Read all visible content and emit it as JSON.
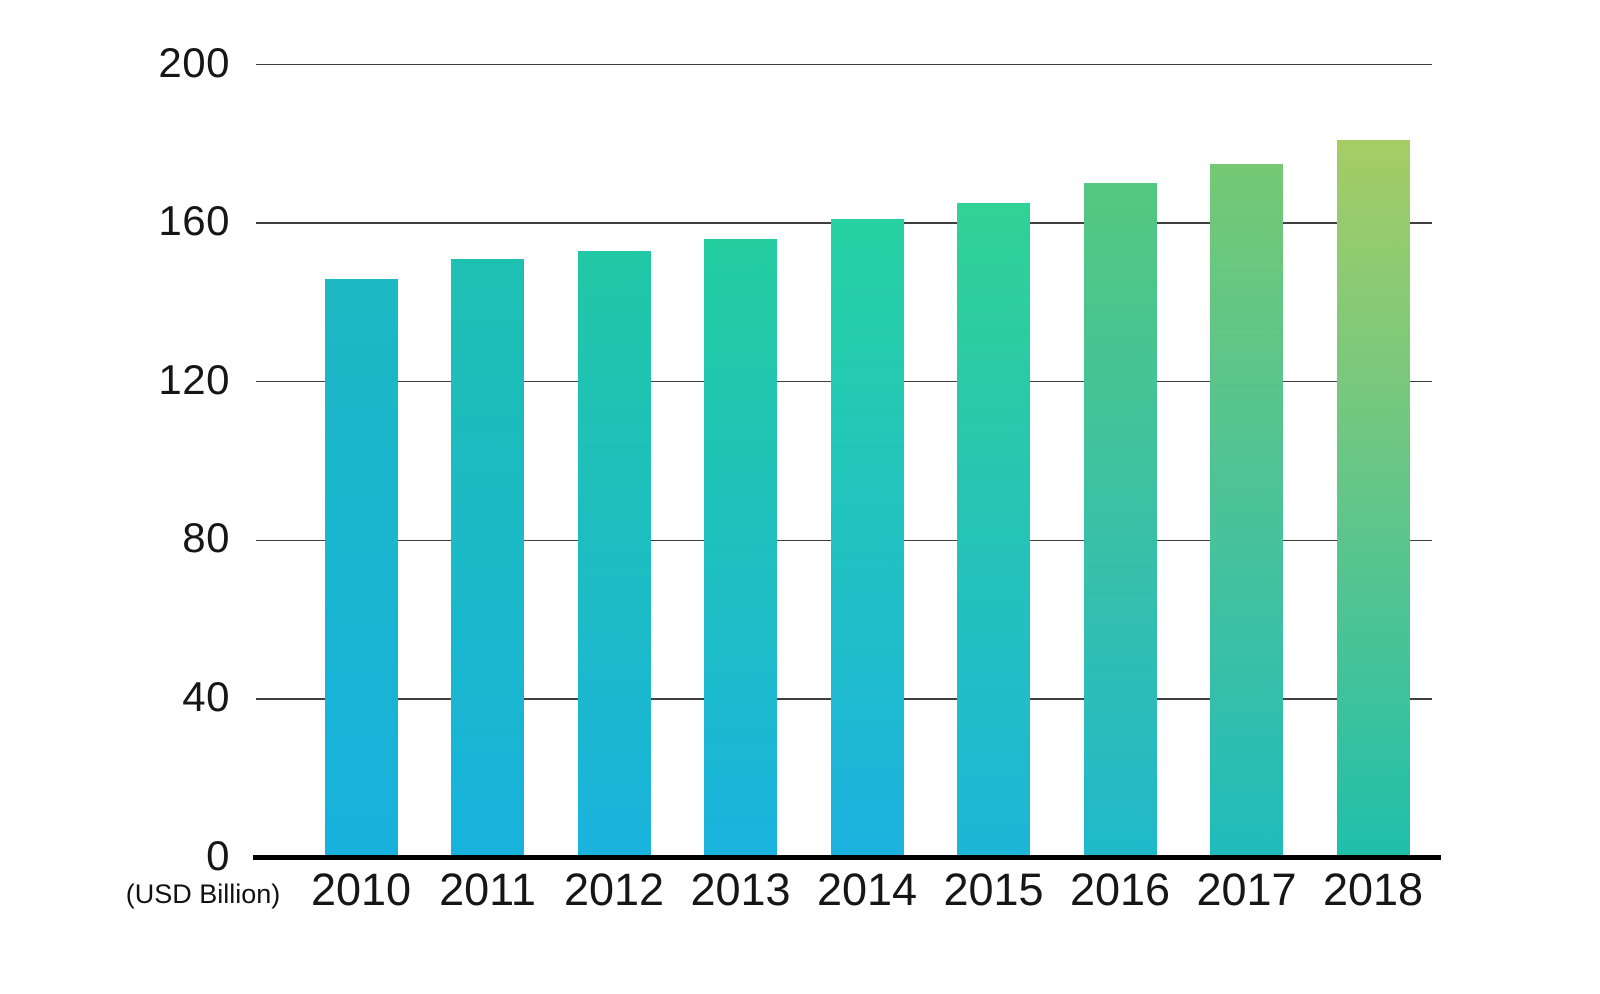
{
  "chart_data": {
    "type": "bar",
    "title": "",
    "xlabel": "",
    "ylabel": "",
    "unit_label": "(USD Billion)",
    "categories": [
      "2010",
      "2011",
      "2012",
      "2013",
      "2014",
      "2015",
      "2016",
      "2017",
      "2018"
    ],
    "values": [
      146,
      151,
      153,
      156,
      161,
      165,
      170,
      175,
      181
    ],
    "ylim": [
      0,
      200
    ],
    "yticks": [
      0,
      40,
      80,
      120,
      160,
      200
    ],
    "grid": true,
    "legend": false,
    "background_color": "#ffffff",
    "grid_color": "#3f3f3f",
    "axis_color": "#000000",
    "text_color": "#161616",
    "bar_gradients": [
      {
        "bottom": "#17b2dd",
        "top": "#1cb8c3"
      },
      {
        "bottom": "#18b3dd",
        "top": "#1ec0b2"
      },
      {
        "bottom": "#19b3de",
        "top": "#20c8a5"
      },
      {
        "bottom": "#1ab3df",
        "top": "#23cd9f"
      },
      {
        "bottom": "#1cb2e0",
        "top": "#26d2a2"
      },
      {
        "bottom": "#1db5d8",
        "top": "#30d295"
      },
      {
        "bottom": "#1fb9cb",
        "top": "#55c87f"
      },
      {
        "bottom": "#1fbcbc",
        "top": "#76c974"
      },
      {
        "bottom": "#1fbfac",
        "top": "#a6cd65"
      }
    ]
  }
}
